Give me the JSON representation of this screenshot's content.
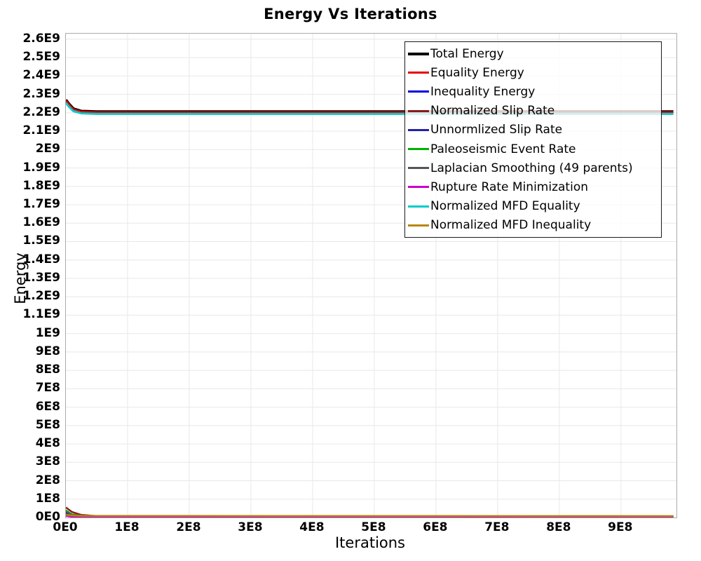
{
  "title": "Energy Vs Iterations",
  "axes": {
    "x_label": "Iterations",
    "y_label": "Energy",
    "x_tick_labels": [
      "0E0",
      "1E8",
      "2E8",
      "3E8",
      "4E8",
      "5E8",
      "6E8",
      "7E8",
      "8E8",
      "9E8"
    ],
    "y_tick_labels": [
      "0E0",
      "1E8",
      "2E8",
      "3E8",
      "4E8",
      "5E8",
      "6E8",
      "7E8",
      "8E8",
      "9E8",
      "1E9",
      "1.1E9",
      "1.2E9",
      "1.3E9",
      "1.4E9",
      "1.5E9",
      "1.6E9",
      "1.7E9",
      "1.8E9",
      "1.9E9",
      "2E9",
      "2.1E9",
      "2.2E9",
      "2.3E9",
      "2.4E9",
      "2.5E9",
      "2.6E9"
    ]
  },
  "colors": {
    "grid": "#e8e8e8",
    "plot_border": "#ababab",
    "legend_border": "#1a1a1a",
    "background": "#ffffff"
  },
  "chart_data": {
    "type": "line",
    "title": "Energy Vs Iterations",
    "xlabel": "Iterations",
    "ylabel": "Energy",
    "xlim": [
      0,
      990000000
    ],
    "ylim": [
      0,
      2630000000
    ],
    "x_ticks": [
      0,
      100000000,
      200000000,
      300000000,
      400000000,
      500000000,
      600000000,
      700000000,
      800000000,
      900000000
    ],
    "y_ticks_step": 100000000,
    "y_ticks_count": 27,
    "grid": true,
    "legend_position": "top-right",
    "series": [
      {
        "name": "Total Energy",
        "color": "#000000",
        "width": 4,
        "points": [
          [
            0,
            2270000000
          ],
          [
            5000000,
            2248000000
          ],
          [
            12000000,
            2222000000
          ],
          [
            25000000,
            2209000000
          ],
          [
            50000000,
            2206000000
          ],
          [
            985000000,
            2206000000
          ]
        ]
      },
      {
        "name": "Equality Energy",
        "color": "#e60000",
        "width": 3,
        "points": [
          [
            0,
            2266000000
          ],
          [
            5000000,
            2244000000
          ],
          [
            12000000,
            2218000000
          ],
          [
            25000000,
            2205000000
          ],
          [
            50000000,
            2202000000
          ],
          [
            985000000,
            2202000000
          ]
        ]
      },
      {
        "name": "Inequality Energy",
        "color": "#0000dd",
        "width": 2,
        "points": [
          [
            0,
            28000000
          ],
          [
            10000000,
            12000000
          ],
          [
            30000000,
            5000000
          ],
          [
            985000000,
            4000000
          ]
        ]
      },
      {
        "name": "Normalized Slip Rate",
        "color": "#8b1a1a",
        "width": 2.5,
        "points": [
          [
            0,
            55000000
          ],
          [
            10000000,
            30000000
          ],
          [
            25000000,
            14000000
          ],
          [
            50000000,
            8000000
          ],
          [
            985000000,
            7000000
          ]
        ]
      },
      {
        "name": "Unnormlized Slip Rate",
        "color": "#2222aa",
        "width": 2,
        "points": [
          [
            0,
            22000000
          ],
          [
            10000000,
            9000000
          ],
          [
            30000000,
            4000000
          ],
          [
            985000000,
            3000000
          ]
        ]
      },
      {
        "name": "Paleoseismic Event Rate",
        "color": "#00b300",
        "width": 2,
        "points": [
          [
            0,
            40000000
          ],
          [
            10000000,
            18000000
          ],
          [
            30000000,
            8000000
          ],
          [
            985000000,
            6000000
          ]
        ]
      },
      {
        "name": "Laplacian Smoothing (49 parents)",
        "color": "#555555",
        "width": 2,
        "points": [
          [
            0,
            32000000
          ],
          [
            10000000,
            15000000
          ],
          [
            30000000,
            7000000
          ],
          [
            985000000,
            6000000
          ]
        ]
      },
      {
        "name": "Rupture Rate Minimization",
        "color": "#cc00cc",
        "width": 2,
        "points": [
          [
            0,
            8000000
          ],
          [
            10000000,
            3000000
          ],
          [
            30000000,
            1500000
          ],
          [
            985000000,
            1500000
          ]
        ]
      },
      {
        "name": "Normalized MFD Equality",
        "color": "#00cccc",
        "width": 3,
        "points": [
          [
            0,
            2254000000
          ],
          [
            5000000,
            2233000000
          ],
          [
            12000000,
            2209000000
          ],
          [
            25000000,
            2197000000
          ],
          [
            50000000,
            2194000000
          ],
          [
            985000000,
            2194000000
          ]
        ]
      },
      {
        "name": "Normalized MFD Inequality",
        "color": "#b8860b",
        "width": 2.5,
        "points": [
          [
            0,
            16000000
          ],
          [
            10000000,
            11000000
          ],
          [
            30000000,
            9000000
          ],
          [
            985000000,
            8000000
          ]
        ]
      }
    ]
  }
}
